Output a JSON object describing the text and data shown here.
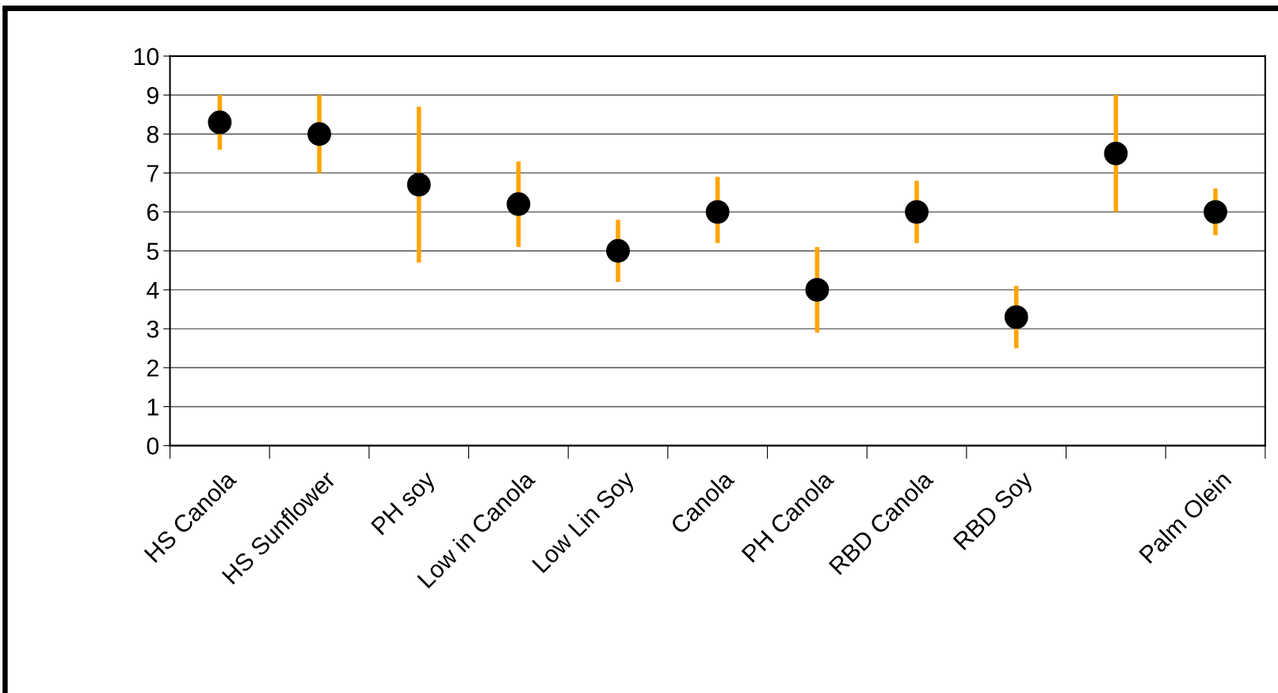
{
  "chart_data": {
    "type": "scatter",
    "categories": [
      "HS Canola",
      "HS Sunflower",
      "PH soy",
      "Low in Canola",
      "Low Lin Soy",
      "Canola",
      "PH Canola",
      "RBD Canola",
      "RBD Soy",
      null,
      "Palm Olein"
    ],
    "series": [
      {
        "color": "#000000",
        "values": [
          8.3,
          8.0,
          6.7,
          6.2,
          5.0,
          6.0,
          4.0,
          6.0,
          3.3,
          7.5,
          6.0
        ],
        "errors": [
          [
            7.6,
            9.0
          ],
          [
            7.0,
            9.0
          ],
          [
            4.7,
            8.7
          ],
          [
            5.1,
            7.3
          ],
          [
            4.2,
            5.8
          ],
          [
            5.2,
            6.9
          ],
          [
            2.9,
            5.1
          ],
          [
            5.2,
            6.8
          ],
          [
            2.5,
            4.1
          ],
          [
            6.0,
            9.0
          ],
          [
            5.4,
            6.6
          ]
        ]
      }
    ],
    "ylim": [
      0,
      10
    ],
    "yticks": [
      0,
      1,
      2,
      3,
      4,
      5,
      6,
      7,
      8,
      9,
      10
    ],
    "grid": "y",
    "marker": "circle",
    "legend": false
  }
}
